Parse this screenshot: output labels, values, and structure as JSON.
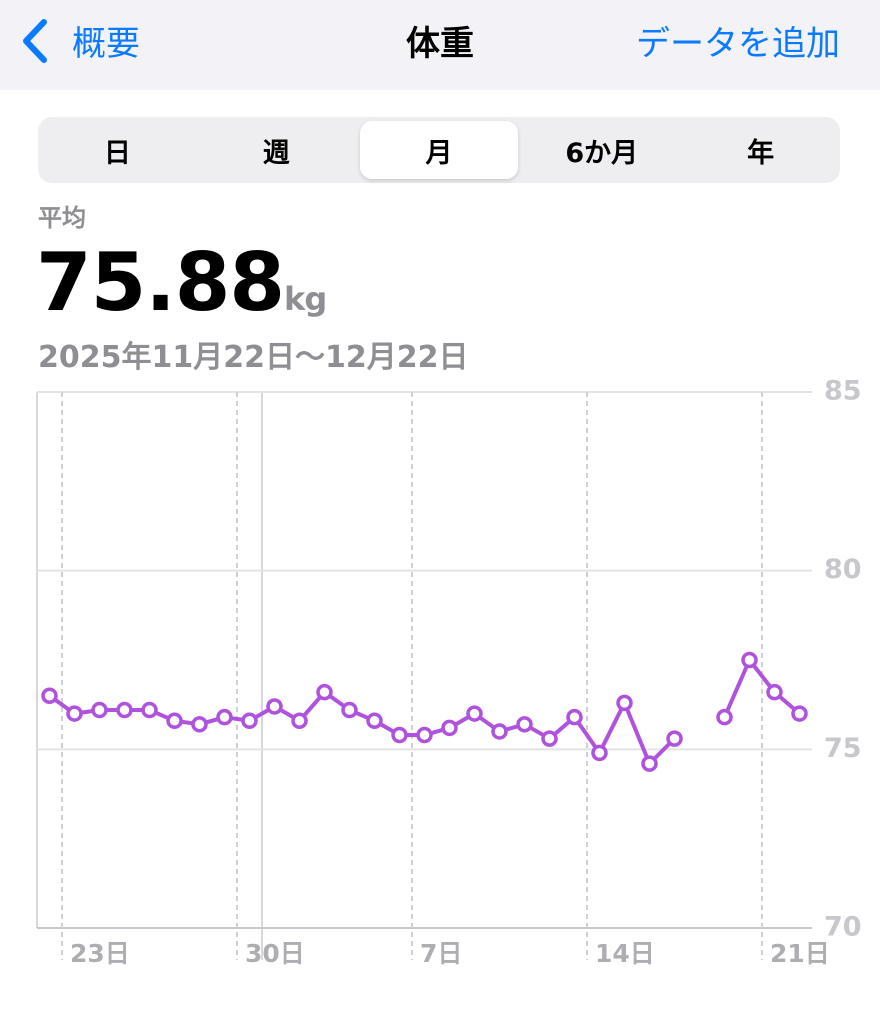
{
  "nav": {
    "back": "概要",
    "title": "体重",
    "action": "データを追加"
  },
  "segments": {
    "items": [
      "日",
      "週",
      "月",
      "6か月",
      "年"
    ],
    "selected": "月"
  },
  "summary": {
    "label": "平均",
    "value": "75.88",
    "unit": "kg",
    "range": "2025年11月22日〜12月22日"
  },
  "chart_data": {
    "type": "line",
    "categories": [
      null,
      "23日",
      null,
      null,
      null,
      null,
      null,
      null,
      "30日",
      null,
      null,
      null,
      null,
      null,
      null,
      "7日",
      null,
      null,
      null,
      null,
      null,
      null,
      "14日",
      null,
      null,
      null,
      null,
      null,
      null,
      "21日",
      null
    ],
    "series": [
      {
        "name": "体重",
        "color": "#af52de",
        "values": [
          76.5,
          76.0,
          76.1,
          76.1,
          76.1,
          75.8,
          75.7,
          75.9,
          75.8,
          76.2,
          75.8,
          76.6,
          76.1,
          75.8,
          75.4,
          75.4,
          75.6,
          76.0,
          75.5,
          75.7,
          75.3,
          75.9,
          74.9,
          76.3,
          74.6,
          75.3,
          null,
          75.9,
          77.5,
          76.6,
          76.0
        ]
      }
    ],
    "ylim": [
      70,
      85
    ],
    "yticks": [
      70,
      75,
      80,
      85
    ],
    "grid": true
  }
}
